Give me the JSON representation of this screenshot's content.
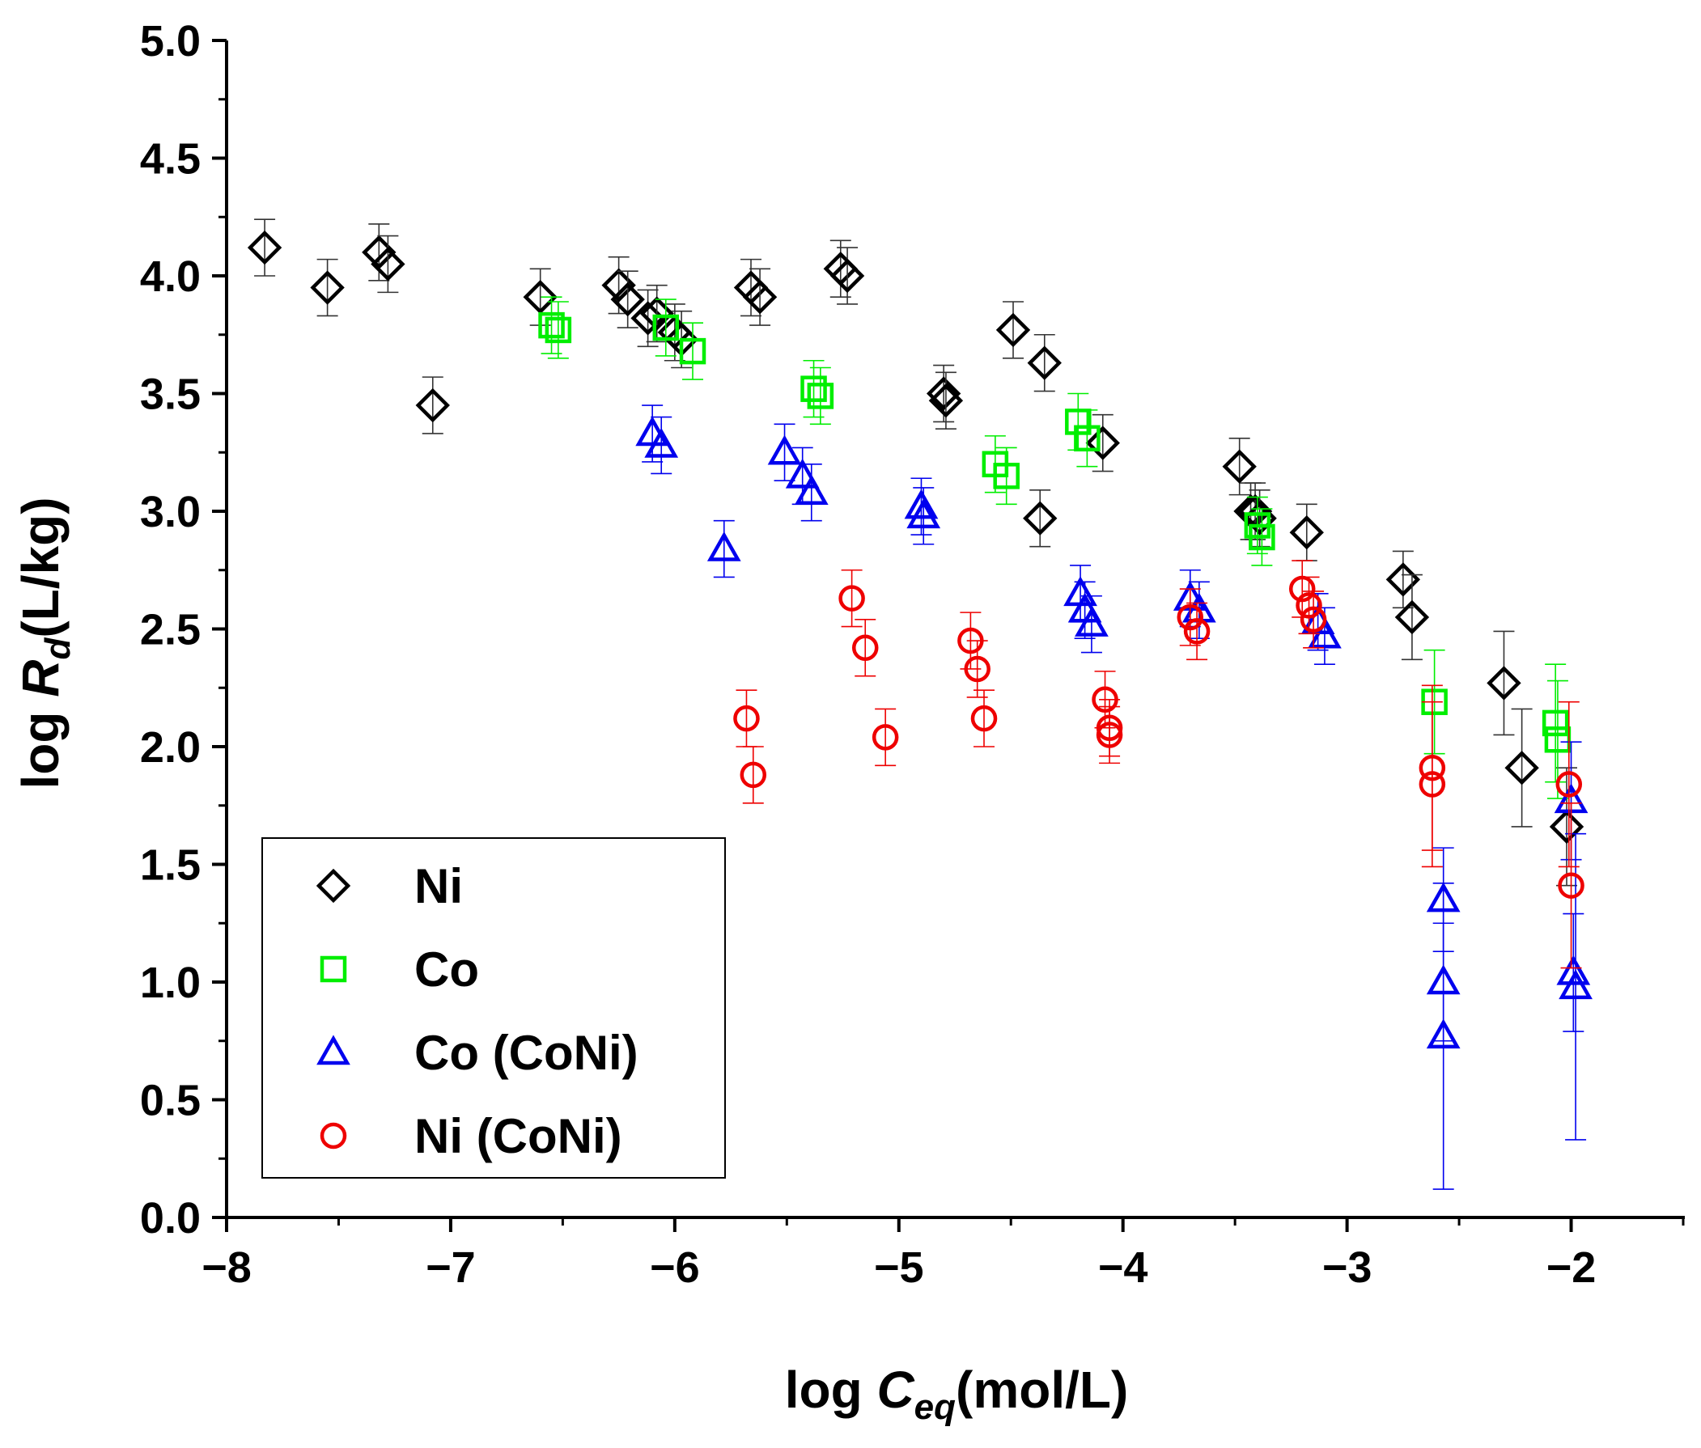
{
  "chart_data": {
    "type": "scatter",
    "title": "",
    "xlabel": {
      "prefix": "log ",
      "var": "C",
      "sub": "eq",
      "units": "(mol/L)"
    },
    "ylabel": {
      "prefix": "log ",
      "var": "R",
      "sub": "d",
      "units": "(L/kg)"
    },
    "xlim": [
      -8,
      -1.5
    ],
    "ylim": [
      0,
      5
    ],
    "x_ticks": [
      -8,
      -7,
      -6,
      -5,
      -4,
      -3,
      -2
    ],
    "x_tick_labels": [
      "−8",
      "−7",
      "−6",
      "−5",
      "−4",
      "−3",
      "−2"
    ],
    "y_ticks": [
      0,
      0.5,
      1,
      1.5,
      2,
      2.5,
      3,
      3.5,
      4,
      4.5,
      5
    ],
    "y_tick_labels": [
      "0.0",
      "0.5",
      "1.0",
      "1.5",
      "2.0",
      "2.5",
      "3.0",
      "3.5",
      "4.0",
      "4.5",
      "5.0"
    ],
    "legend_position": "bottom-left",
    "series": [
      {
        "name": "Ni",
        "marker": "diamond",
        "color": "#000000",
        "points": [
          [
            -7.83,
            4.12,
            0.12
          ],
          [
            -7.55,
            3.95,
            0.12
          ],
          [
            -7.32,
            4.1,
            0.12
          ],
          [
            -7.28,
            4.05,
            0.12
          ],
          [
            -7.08,
            3.45,
            0.12
          ],
          [
            -6.6,
            3.91,
            0.12
          ],
          [
            -6.25,
            3.96,
            0.12
          ],
          [
            -6.21,
            3.9,
            0.12
          ],
          [
            -6.12,
            3.82,
            0.12
          ],
          [
            -6.08,
            3.84,
            0.12
          ],
          [
            -6.0,
            3.76,
            0.12
          ],
          [
            -5.97,
            3.73,
            0.12
          ],
          [
            -5.66,
            3.95,
            0.12
          ],
          [
            -5.62,
            3.91,
            0.12
          ],
          [
            -5.26,
            4.03,
            0.12
          ],
          [
            -5.23,
            4.0,
            0.12
          ],
          [
            -4.8,
            3.5,
            0.12
          ],
          [
            -4.79,
            3.47,
            0.12
          ],
          [
            -4.49,
            3.77,
            0.12
          ],
          [
            -4.37,
            2.97,
            0.12
          ],
          [
            -4.35,
            3.63,
            0.12
          ],
          [
            -4.09,
            3.29,
            0.12
          ],
          [
            -3.48,
            3.19,
            0.12
          ],
          [
            -3.43,
            3.0,
            0.12
          ],
          [
            -3.41,
            3.0,
            0.12
          ],
          [
            -3.39,
            2.97,
            0.12
          ],
          [
            -3.18,
            2.91,
            0.12
          ],
          [
            -2.75,
            2.71,
            0.12
          ],
          [
            -2.71,
            2.55,
            0.18
          ],
          [
            -2.3,
            2.27,
            0.22
          ],
          [
            -2.22,
            1.91,
            0.25
          ],
          [
            -2.02,
            1.66,
            0.25
          ]
        ]
      },
      {
        "name": "Co",
        "marker": "square",
        "color": "#00ee00",
        "points": [
          [
            -6.55,
            3.79,
            0.12
          ],
          [
            -6.52,
            3.77,
            0.12
          ],
          [
            -6.04,
            3.78,
            0.12
          ],
          [
            -5.92,
            3.68,
            0.12
          ],
          [
            -5.38,
            3.52,
            0.12
          ],
          [
            -5.35,
            3.49,
            0.12
          ],
          [
            -4.57,
            3.2,
            0.12
          ],
          [
            -4.52,
            3.15,
            0.12
          ],
          [
            -4.2,
            3.38,
            0.12
          ],
          [
            -4.16,
            3.31,
            0.12
          ],
          [
            -3.4,
            2.94,
            0.12
          ],
          [
            -3.38,
            2.89,
            0.12
          ],
          [
            -2.61,
            2.19,
            0.22
          ],
          [
            -2.07,
            2.1,
            0.25
          ],
          [
            -2.06,
            2.03,
            0.25
          ]
        ]
      },
      {
        "name": "Co (CoNi)",
        "marker": "triangle",
        "color": "#0000ee",
        "points": [
          [
            -6.1,
            3.33,
            0.12
          ],
          [
            -6.06,
            3.28,
            0.12
          ],
          [
            -5.78,
            2.84,
            0.12
          ],
          [
            -5.51,
            3.25,
            0.12
          ],
          [
            -5.43,
            3.15,
            0.12
          ],
          [
            -5.39,
            3.08,
            0.12
          ],
          [
            -4.9,
            3.02,
            0.12
          ],
          [
            -4.89,
            2.98,
            0.12
          ],
          [
            -4.19,
            2.65,
            0.12
          ],
          [
            -4.17,
            2.58,
            0.12
          ],
          [
            -4.14,
            2.52,
            0.12
          ],
          [
            -3.7,
            2.63,
            0.12
          ],
          [
            -3.66,
            2.58,
            0.12
          ],
          [
            -3.13,
            2.53,
            0.12
          ],
          [
            -3.1,
            2.47,
            0.12
          ],
          [
            -2.57,
            1.35,
            0.22
          ],
          [
            -2.57,
            1.0,
            0.25
          ],
          [
            -2.57,
            0.77,
            0.65
          ],
          [
            -2.0,
            1.77,
            0.25
          ],
          [
            -1.99,
            1.04,
            0.25
          ],
          [
            -1.98,
            0.98,
            0.65
          ]
        ]
      },
      {
        "name": "Ni (CoNi)",
        "marker": "circle",
        "color": "#ee0000",
        "points": [
          [
            -5.68,
            2.12,
            0.12
          ],
          [
            -5.65,
            1.88,
            0.12
          ],
          [
            -5.21,
            2.63,
            0.12
          ],
          [
            -5.15,
            2.42,
            0.12
          ],
          [
            -5.06,
            2.04,
            0.12
          ],
          [
            -4.68,
            2.45,
            0.12
          ],
          [
            -4.65,
            2.33,
            0.12
          ],
          [
            -4.62,
            2.12,
            0.12
          ],
          [
            -4.08,
            2.2,
            0.12
          ],
          [
            -4.06,
            2.08,
            0.12
          ],
          [
            -4.06,
            2.05,
            0.12
          ],
          [
            -3.7,
            2.55,
            0.12
          ],
          [
            -3.67,
            2.49,
            0.12
          ],
          [
            -3.2,
            2.67,
            0.12
          ],
          [
            -3.17,
            2.6,
            0.12
          ],
          [
            -3.15,
            2.54,
            0.12
          ],
          [
            -2.62,
            1.91,
            0.35
          ],
          [
            -2.62,
            1.84,
            0.35
          ],
          [
            -2.01,
            1.84,
            0.35
          ],
          [
            -2.0,
            1.41,
            0.35
          ]
        ]
      }
    ]
  }
}
